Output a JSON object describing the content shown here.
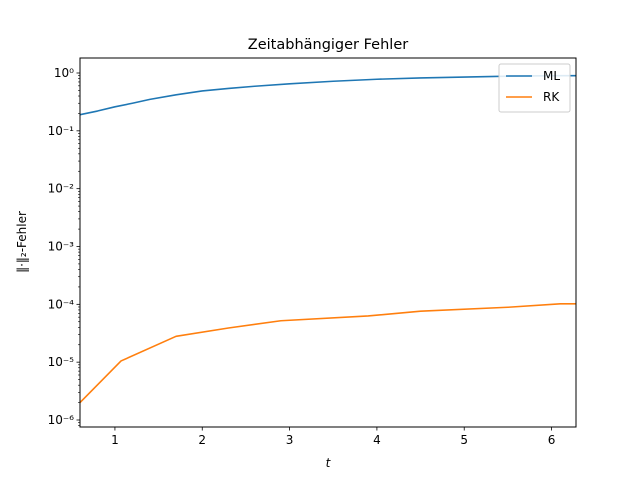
{
  "chart_data": {
    "type": "line",
    "title": "Zeitabhängiger Fehler",
    "xlabel": "t",
    "ylabel": "‖·‖₂-Fehler",
    "xlim": [
      0.6,
      6.28
    ],
    "ylim": [
      8e-07,
      1.7
    ],
    "yscale": "log",
    "x_ticks": [
      1,
      2,
      3,
      4,
      5,
      6
    ],
    "x_tick_labels": [
      "1",
      "2",
      "3",
      "4",
      "5",
      "6"
    ],
    "y_ticks": [
      1e-06,
      1e-05,
      0.0001,
      0.001,
      0.01,
      0.1,
      1
    ],
    "y_tick_labels": [
      "10⁻⁶",
      "10⁻⁵",
      "10⁻⁴",
      "10⁻³",
      "10⁻²",
      "10⁻¹",
      "10⁰"
    ],
    "legend_placement": "top-right",
    "grid": false,
    "series": [
      {
        "name": "ML",
        "color": "#1f77b4",
        "x": [
          0.6,
          0.8,
          1.0,
          1.2,
          1.4,
          1.7,
          2.0,
          2.3,
          2.6,
          3.0,
          3.5,
          4.0,
          4.5,
          5.0,
          5.5,
          6.0,
          6.28
        ],
        "y": [
          0.19,
          0.22,
          0.26,
          0.3,
          0.35,
          0.42,
          0.49,
          0.54,
          0.59,
          0.65,
          0.72,
          0.78,
          0.82,
          0.85,
          0.88,
          0.9,
          0.9
        ]
      },
      {
        "name": "RK",
        "color": "#ff7f0e",
        "x": [
          0.6,
          1.07,
          1.7,
          2.3,
          2.9,
          3.9,
          4.5,
          5.5,
          6.1,
          6.28
        ],
        "y": [
          2e-06,
          1.05e-05,
          2.8e-05,
          3.9e-05,
          5.2e-05,
          6.3e-05,
          7.6e-05,
          8.9e-05,
          0.000102,
          0.000102
        ]
      }
    ]
  }
}
